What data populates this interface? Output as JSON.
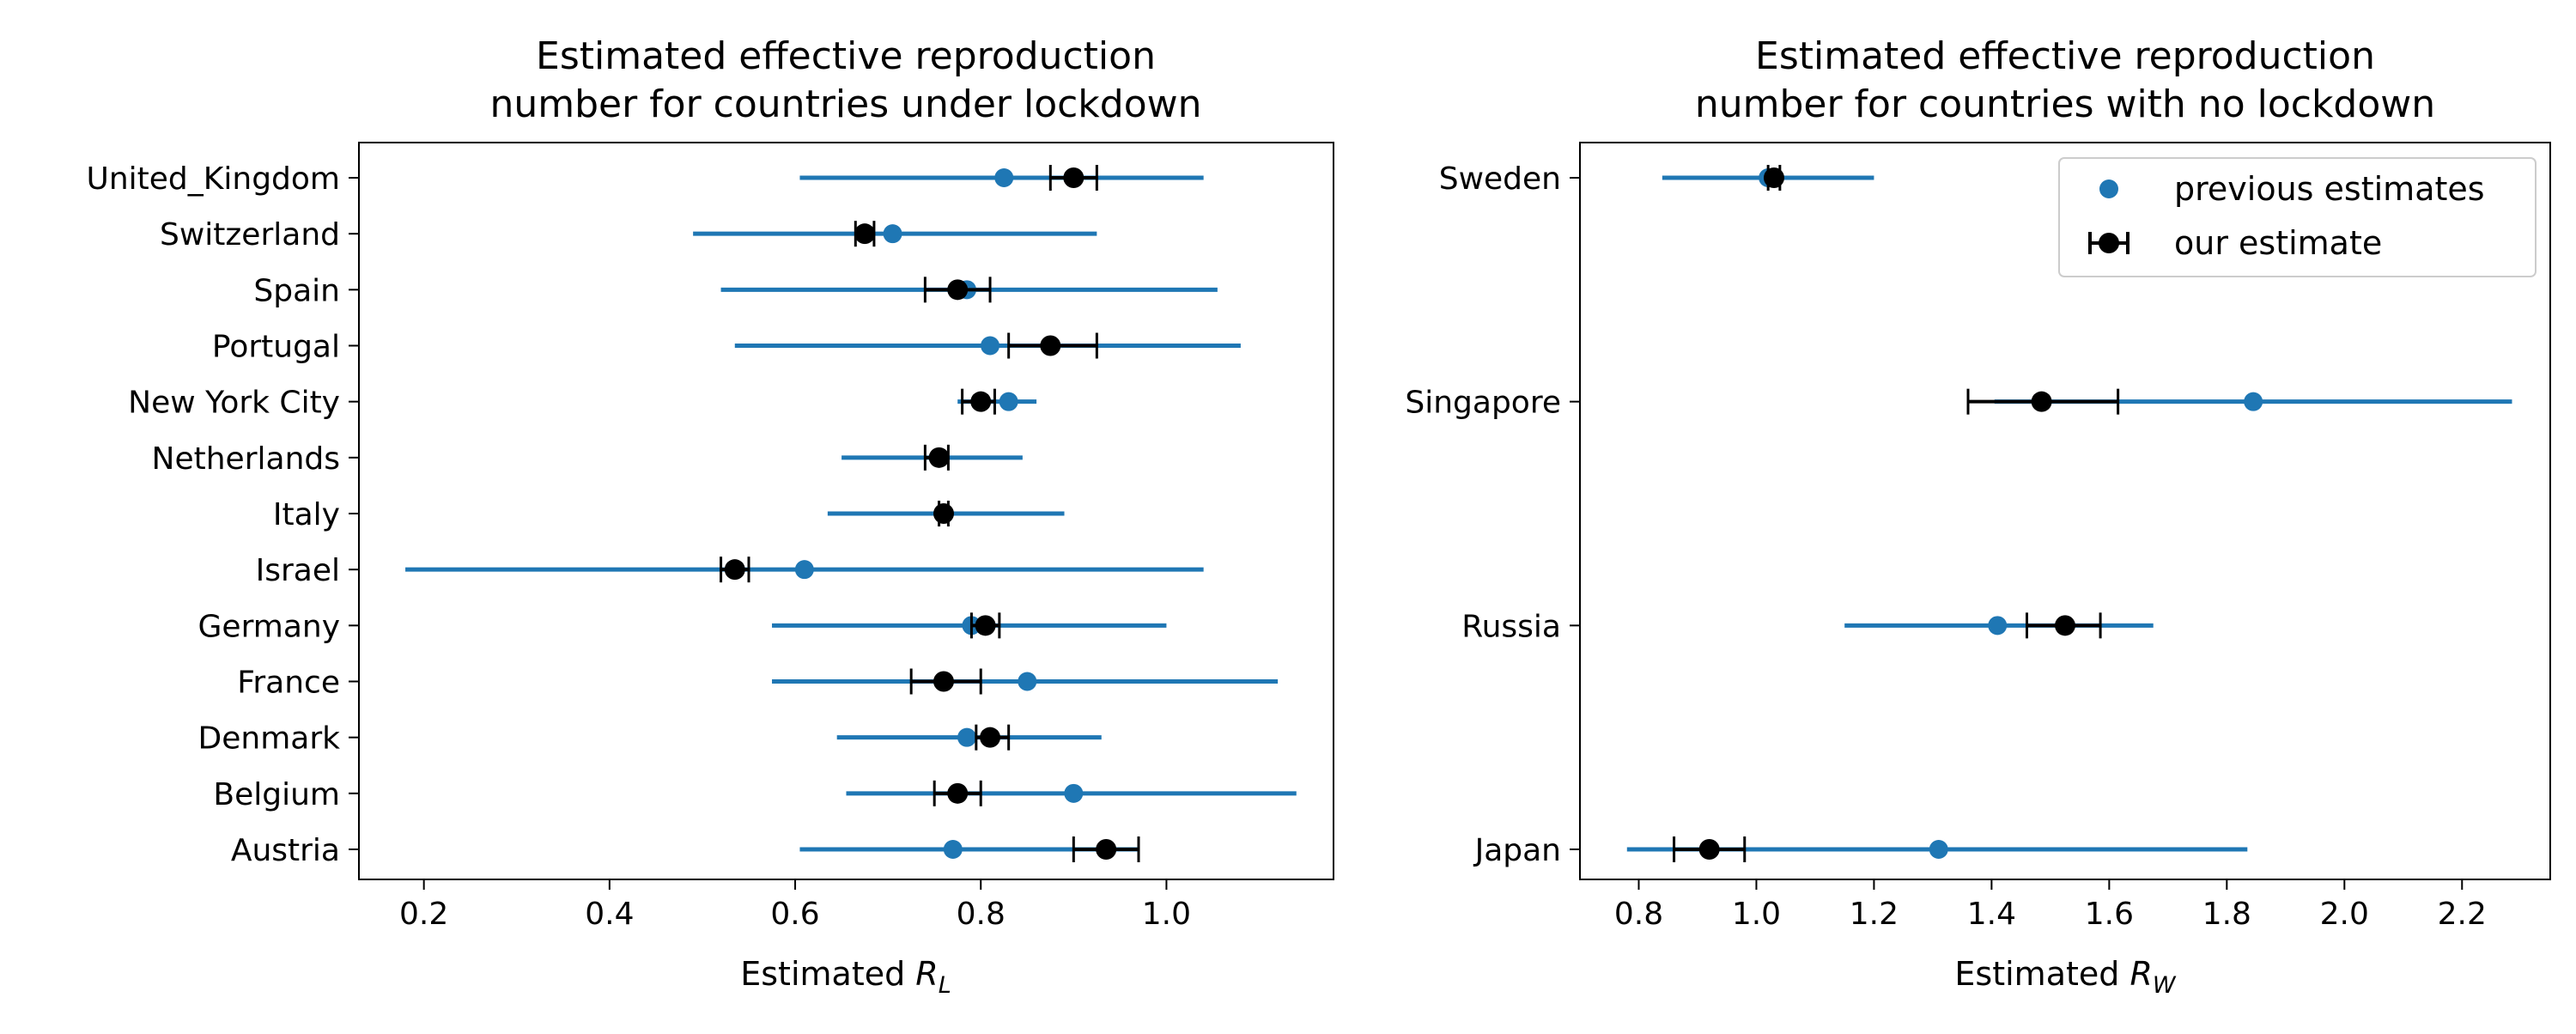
{
  "colors": {
    "previous_estimates": "#1f77b4",
    "our_estimate": "#000000"
  },
  "legend": {
    "items": [
      {
        "label": "previous estimates",
        "marker": "blue-dot"
      },
      {
        "label": "our estimate",
        "marker": "black-dot-with-errorbar"
      }
    ],
    "placement": "upper-right of right panel"
  },
  "chart_data": [
    {
      "type": "scatter",
      "subtype": "horizontal error-bar plot",
      "title_lines": [
        "Estimated effective reproduction",
        "number for countries under lockdown"
      ],
      "xlabel": {
        "prefix": "Estimated ",
        "symbol": "R",
        "subscript": "L"
      },
      "ylabel": "",
      "xlim": [
        0.13,
        1.18
      ],
      "xticks": [
        0.2,
        0.4,
        0.6,
        0.8,
        1.0
      ],
      "xtick_labels": [
        "0.2",
        "0.4",
        "0.6",
        "0.8",
        "1.0"
      ],
      "grid": false,
      "categories": [
        "United_Kingdom",
        "Switzerland",
        "Spain",
        "Portugal",
        "New York City",
        "Netherlands",
        "Italy",
        "Israel",
        "Germany",
        "France",
        "Denmark",
        "Belgium",
        "Austria"
      ],
      "series": [
        {
          "name": "previous estimates",
          "values": [
            0.825,
            0.705,
            0.785,
            0.81,
            0.83,
            0.755,
            0.76,
            0.61,
            0.79,
            0.85,
            0.785,
            0.9,
            0.77
          ],
          "lower": [
            0.605,
            0.49,
            0.52,
            0.535,
            0.775,
            0.65,
            0.635,
            0.18,
            0.575,
            0.575,
            0.645,
            0.655,
            0.605
          ],
          "upper": [
            1.04,
            0.925,
            1.055,
            1.08,
            0.86,
            0.845,
            0.89,
            1.04,
            1.0,
            1.12,
            0.93,
            1.14,
            0.97
          ]
        },
        {
          "name": "our estimate",
          "values": [
            0.9,
            0.675,
            0.775,
            0.875,
            0.8,
            0.755,
            0.76,
            0.535,
            0.805,
            0.76,
            0.81,
            0.775,
            0.935
          ],
          "lower": [
            0.875,
            0.665,
            0.74,
            0.83,
            0.78,
            0.74,
            0.755,
            0.52,
            0.79,
            0.725,
            0.795,
            0.75,
            0.9
          ],
          "upper": [
            0.925,
            0.685,
            0.81,
            0.925,
            0.815,
            0.765,
            0.765,
            0.55,
            0.82,
            0.8,
            0.83,
            0.8,
            0.97
          ]
        }
      ]
    },
    {
      "type": "scatter",
      "subtype": "horizontal error-bar plot",
      "title_lines": [
        "Estimated effective reproduction",
        "number for countries with no lockdown"
      ],
      "xlabel": {
        "prefix": "Estimated ",
        "symbol": "R",
        "subscript": "W"
      },
      "ylabel": "",
      "xlim": [
        0.7,
        2.35
      ],
      "xticks": [
        0.8,
        1.0,
        1.2,
        1.4,
        1.6,
        1.8,
        2.0,
        2.2
      ],
      "xtick_labels": [
        "0.8",
        "1.0",
        "1.2",
        "1.4",
        "1.6",
        "1.8",
        "2.0",
        "2.2"
      ],
      "grid": false,
      "categories": [
        "Sweden",
        "Singapore",
        "Russia",
        "Japan"
      ],
      "series": [
        {
          "name": "previous estimates",
          "values": [
            1.02,
            1.845,
            1.41,
            1.31
          ],
          "lower": [
            0.84,
            1.405,
            1.15,
            0.78
          ],
          "upper": [
            1.2,
            2.285,
            1.675,
            1.835
          ]
        },
        {
          "name": "our estimate",
          "values": [
            1.03,
            1.485,
            1.525,
            0.92
          ],
          "lower": [
            1.02,
            1.36,
            1.46,
            0.86
          ],
          "upper": [
            1.04,
            1.615,
            1.585,
            0.98
          ]
        }
      ]
    }
  ]
}
